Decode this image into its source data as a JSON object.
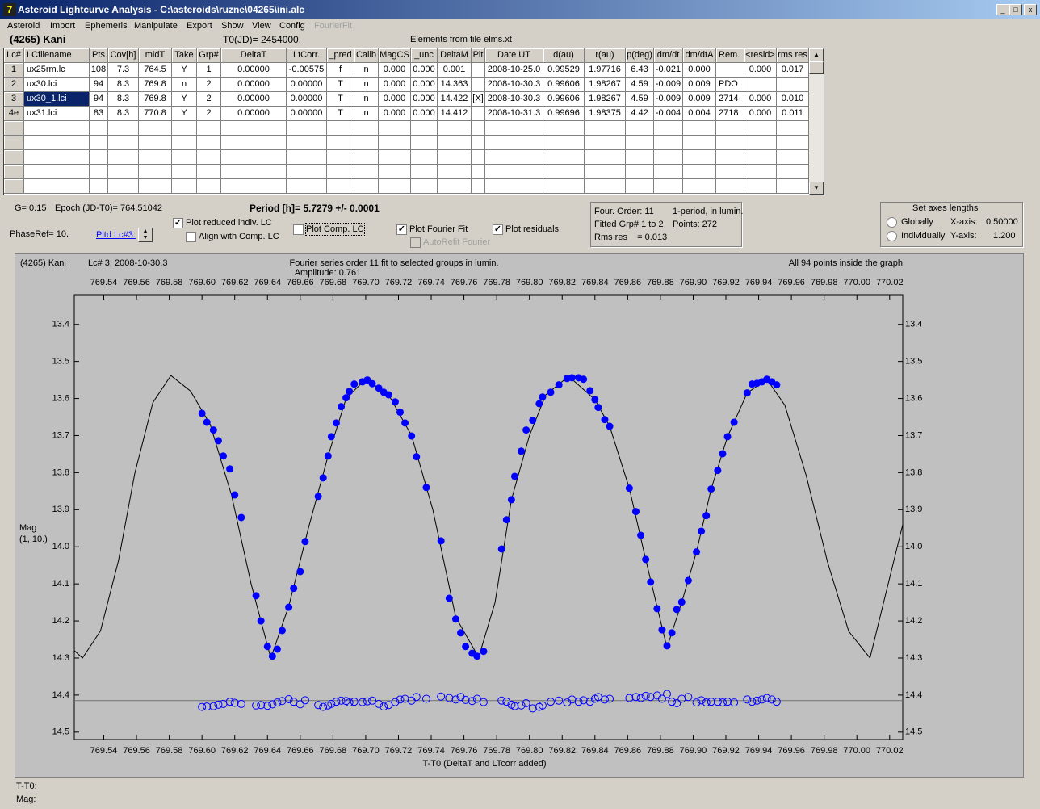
{
  "window": {
    "title": "Asteroid Lightcurve Analysis - C:\\asteroids\\ruzne\\04265\\ini.alc"
  },
  "menu": [
    "Asteroid",
    "Import",
    "Ephemeris",
    "Manipulate",
    "Export",
    "Show",
    "View",
    "Config",
    "FourierFit"
  ],
  "header": {
    "object": "(4265) Kani",
    "t0": "T0(JD)= 2454000.",
    "elements": "Elements from file elms.xt"
  },
  "table": {
    "columns": [
      "Lc#",
      "LCfilename",
      "Pts",
      "Cov[h]",
      "midT",
      "Take",
      "Grp#",
      "DeltaT",
      "LtCorr.",
      "_pred",
      "Calib",
      "MagCS",
      "_unc",
      "DeltaM",
      "Plt",
      "Date UT",
      "d(au)",
      "r(au)",
      "p(deg)",
      "dm/dt",
      "dm/dtA",
      "Rem.",
      "<resid>",
      "rms res"
    ],
    "rows": [
      [
        "1",
        "ux25rm.lc",
        "108",
        "7.3",
        "764.5",
        "Y",
        "1",
        "0.00000",
        "-0.00575",
        "f",
        "n",
        "0.000",
        "0.000",
        "0.001",
        null,
        "2008-10-25.0",
        "0.99529",
        "1.97716",
        "6.43",
        "-0.021",
        "0.000",
        null,
        "0.000",
        "0.017"
      ],
      [
        "2",
        "ux30.lci",
        "94",
        "8.3",
        "769.8",
        "n",
        "2",
        "0.00000",
        "0.00000",
        "T",
        "n",
        "0.000",
        "0.000",
        "14.363",
        null,
        "2008-10-30.3",
        "0.99606",
        "1.98267",
        "4.59",
        "-0.009",
        "0.009",
        "PDO",
        null,
        null
      ],
      [
        "3",
        "ux30_1.lci",
        "94",
        "8.3",
        "769.8",
        "Y",
        "2",
        "0.00000",
        "0.00000",
        "T",
        "n",
        "0.000",
        "0.000",
        "14.422",
        "[X]",
        "2008-10-30.3",
        "0.99606",
        "1.98267",
        "4.59",
        "-0.009",
        "0.009",
        "2714",
        "0.000",
        "0.010"
      ],
      [
        "4e",
        "ux31.lci",
        "83",
        "8.3",
        "770.8",
        "Y",
        "2",
        "0.00000",
        "0.00000",
        "T",
        "n",
        "0.000",
        "0.000",
        "14.412",
        null,
        "2008-10-31.3",
        "0.99696",
        "1.98375",
        "4.42",
        "-0.004",
        "0.004",
        "2718",
        "0.000",
        "0.011"
      ]
    ],
    "selected": [
      2,
      1
    ]
  },
  "controls": {
    "g": "G= 0.15",
    "epoch": "Epoch (JD-T0)= 764.51042",
    "period": "Period [h]= 5.7279 +/- 0.0001",
    "phase_ref": "PhaseRef= 10.",
    "pltd_lc": "Pltd Lc#3:",
    "checkboxes": [
      {
        "label": "Plot reduced indiv. LC",
        "checked": true
      },
      {
        "label": "Align with Comp. LC",
        "checked": false
      },
      {
        "label": "Plot Comp. LC",
        "checked": false
      },
      {
        "label": "Plot Fourier Fit",
        "checked": true
      },
      {
        "label": "Plot residuals",
        "checked": true
      },
      {
        "label": "AutoRefit Fourier",
        "checked": false,
        "disabled": true
      }
    ]
  },
  "fit_info": [
    "Four. Order: 11",
    "1-period, in lumin.",
    "Fitted Grp# 1 to 2",
    "Points: 272",
    "Rms res    = 0.013"
  ],
  "axes_lengths": {
    "title": "Set axes lengths",
    "options": [
      "Globally",
      "Individually"
    ],
    "x_label": "X-axis:",
    "x_value": "0.50000",
    "y_label": "Y-axis:",
    "y_value": "1.200"
  },
  "chart_data": {
    "type": "scatter",
    "object": "(4265) Kani",
    "lc_info": "Lc# 3; 2008-10-30.3",
    "title": "Fourier series order 11 fit to selected groups in lumin.",
    "subtitle": "Amplitude: 0.761",
    "note": "All 94 points inside the graph",
    "xlabel": "T-T0 (DeltaT and LTcorr added)",
    "ylabel": [
      "Mag",
      "(1, 10.)"
    ],
    "xlim": [
      769.522,
      770.028
    ],
    "ylim": [
      13.32,
      14.52
    ],
    "y_inverted": true,
    "xticks": [
      {
        "value": 769.54,
        "label": "769.54"
      },
      {
        "value": 769.56,
        "label": "769.56"
      },
      {
        "value": 769.58,
        "label": "769.58"
      },
      {
        "value": 769.6,
        "label": "769.60"
      },
      {
        "value": 769.62,
        "label": "769.62"
      },
      {
        "value": 769.64,
        "label": "769.64"
      },
      {
        "value": 769.66,
        "label": "769.66"
      },
      {
        "value": 769.68,
        "label": "769.68"
      },
      {
        "value": 769.7,
        "label": "769.70"
      },
      {
        "value": 769.72,
        "label": "769.72"
      },
      {
        "value": 769.74,
        "label": "769.74"
      },
      {
        "value": 769.76,
        "label": "769.76"
      },
      {
        "value": 769.78,
        "label": "769.78"
      },
      {
        "value": 769.8,
        "label": "769.80"
      },
      {
        "value": 769.82,
        "label": "769.82"
      },
      {
        "value": 769.84,
        "label": "769.84"
      },
      {
        "value": 769.86,
        "label": "769.86"
      },
      {
        "value": 769.88,
        "label": "769.88"
      },
      {
        "value": 769.9,
        "label": "769.90"
      },
      {
        "value": 769.92,
        "label": "769.92"
      },
      {
        "value": 769.94,
        "label": "769.94"
      },
      {
        "value": 769.96,
        "label": "769.96"
      },
      {
        "value": 769.98,
        "label": "769.98"
      },
      {
        "value": 770,
        "label": "770.00"
      },
      {
        "value": 770.02,
        "label": "770.02"
      }
    ],
    "yticks": [
      13.4,
      13.5,
      13.6,
      13.7,
      13.8,
      13.9,
      {
        "value": 14,
        "label": "14.0"
      },
      14.1,
      14.2,
      14.3,
      14.4,
      14.5
    ],
    "points": {
      "color": "#0000ff",
      "x": [
        769.6,
        769.603,
        769.607,
        769.61,
        769.613,
        769.617,
        769.62,
        769.624,
        769.633,
        769.636,
        769.64,
        769.643,
        769.646,
        769.649,
        769.653,
        769.656,
        769.66,
        769.663,
        769.671,
        769.674,
        769.677,
        769.679,
        769.682,
        769.685,
        769.688,
        769.69,
        769.693,
        769.698,
        769.701,
        769.704,
        769.708,
        769.711,
        769.714,
        769.718,
        769.721,
        769.724,
        769.728,
        769.731,
        769.737,
        769.746,
        769.751,
        769.755,
        769.758,
        769.761,
        769.765,
        769.768,
        769.772,
        769.783,
        769.786,
        769.789,
        769.791,
        769.795,
        769.798,
        769.802,
        769.806,
        769.808,
        769.813,
        769.818,
        769.823,
        769.826,
        769.83,
        769.833,
        769.837,
        769.84,
        769.842,
        769.846,
        769.849,
        769.861,
        769.865,
        769.868,
        769.871,
        769.874,
        769.878,
        769.881,
        769.884,
        769.887,
        769.89,
        769.893,
        769.897,
        769.902,
        769.905,
        769.908,
        769.911,
        769.915,
        769.918,
        769.921,
        769.925,
        769.933,
        769.936,
        769.939,
        769.942,
        769.945,
        769.948,
        769.951
      ],
      "y": [
        13.64,
        13.664,
        13.685,
        13.714,
        13.755,
        13.79,
        13.86,
        13.921,
        14.132,
        14.2,
        14.269,
        14.295,
        14.276,
        14.226,
        14.163,
        14.112,
        14.067,
        13.986,
        13.864,
        13.814,
        13.755,
        13.703,
        13.666,
        13.622,
        13.598,
        13.581,
        13.561,
        13.555,
        13.55,
        13.56,
        13.572,
        13.583,
        13.59,
        13.609,
        13.637,
        13.666,
        13.701,
        13.757,
        13.84,
        13.984,
        14.139,
        14.195,
        14.232,
        14.269,
        14.287,
        14.295,
        14.282,
        14.006,
        13.927,
        13.873,
        13.81,
        13.742,
        13.685,
        13.659,
        13.614,
        13.596,
        13.583,
        13.563,
        13.546,
        13.544,
        13.544,
        13.548,
        13.579,
        13.603,
        13.624,
        13.657,
        13.675,
        13.842,
        13.905,
        13.969,
        14.034,
        14.095,
        14.167,
        14.224,
        14.267,
        14.232,
        14.169,
        14.149,
        14.091,
        14.014,
        13.958,
        13.916,
        13.844,
        13.794,
        13.749,
        13.703,
        13.664,
        13.585,
        13.561,
        13.559,
        13.555,
        13.548,
        13.555,
        13.563
      ]
    },
    "residuals": {
      "color": "#0000ff",
      "y": [
        14.432,
        14.431,
        14.43,
        14.426,
        14.424,
        14.418,
        14.421,
        14.424,
        14.428,
        14.427,
        14.429,
        14.425,
        14.42,
        14.416,
        14.411,
        14.418,
        14.425,
        14.414,
        14.427,
        14.432,
        14.428,
        14.424,
        14.418,
        14.415,
        14.416,
        14.42,
        14.418,
        14.419,
        14.417,
        14.415,
        14.424,
        14.431,
        14.427,
        14.419,
        14.412,
        14.41,
        14.415,
        14.405,
        14.41,
        14.404,
        14.408,
        14.412,
        14.405,
        14.413,
        14.416,
        14.41,
        14.419,
        14.415,
        14.418,
        14.426,
        14.43,
        14.428,
        14.422,
        14.436,
        14.432,
        14.428,
        14.418,
        14.415,
        14.42,
        14.412,
        14.418,
        14.414,
        14.418,
        14.41,
        14.405,
        14.412,
        14.41,
        14.408,
        14.405,
        14.408,
        14.402,
        14.405,
        14.401,
        14.41,
        14.397,
        14.418,
        14.422,
        14.41,
        14.405,
        14.42,
        14.414,
        14.42,
        14.418,
        14.418,
        14.42,
        14.418,
        14.42,
        14.412,
        14.418,
        14.415,
        14.412,
        14.408,
        14.412,
        14.418
      ]
    },
    "residual_baseline": 14.415,
    "fit": {
      "color": "#000000",
      "x": [
        769.522,
        769.527,
        769.538,
        769.549,
        769.559,
        769.57,
        769.581,
        769.593,
        769.605,
        769.618,
        769.63,
        769.642,
        769.653,
        769.665,
        769.677,
        769.688,
        769.7,
        769.714,
        769.728,
        769.741,
        769.755,
        769.769,
        769.779,
        769.789,
        769.8,
        769.81,
        769.824,
        769.84,
        769.849,
        769.861,
        769.871,
        769.884,
        769.893,
        769.902,
        769.911,
        769.921,
        769.933,
        769.945,
        769.956,
        769.969,
        769.982,
        769.995,
        770.008,
        770.028
      ],
      "y": [
        14.28,
        14.3,
        14.227,
        14.037,
        13.801,
        13.611,
        13.538,
        13.58,
        13.67,
        13.86,
        14.1,
        14.3,
        14.16,
        13.95,
        13.755,
        13.6,
        13.548,
        13.59,
        13.7,
        13.9,
        14.19,
        14.298,
        14.15,
        13.873,
        13.7,
        13.59,
        13.54,
        13.603,
        13.675,
        13.842,
        14.034,
        14.272,
        14.15,
        14.014,
        13.844,
        13.703,
        13.585,
        13.548,
        13.618,
        13.807,
        14.04,
        14.228,
        14.3,
        13.94
      ]
    }
  },
  "status": [
    "T-T0:",
    "Mag:"
  ]
}
